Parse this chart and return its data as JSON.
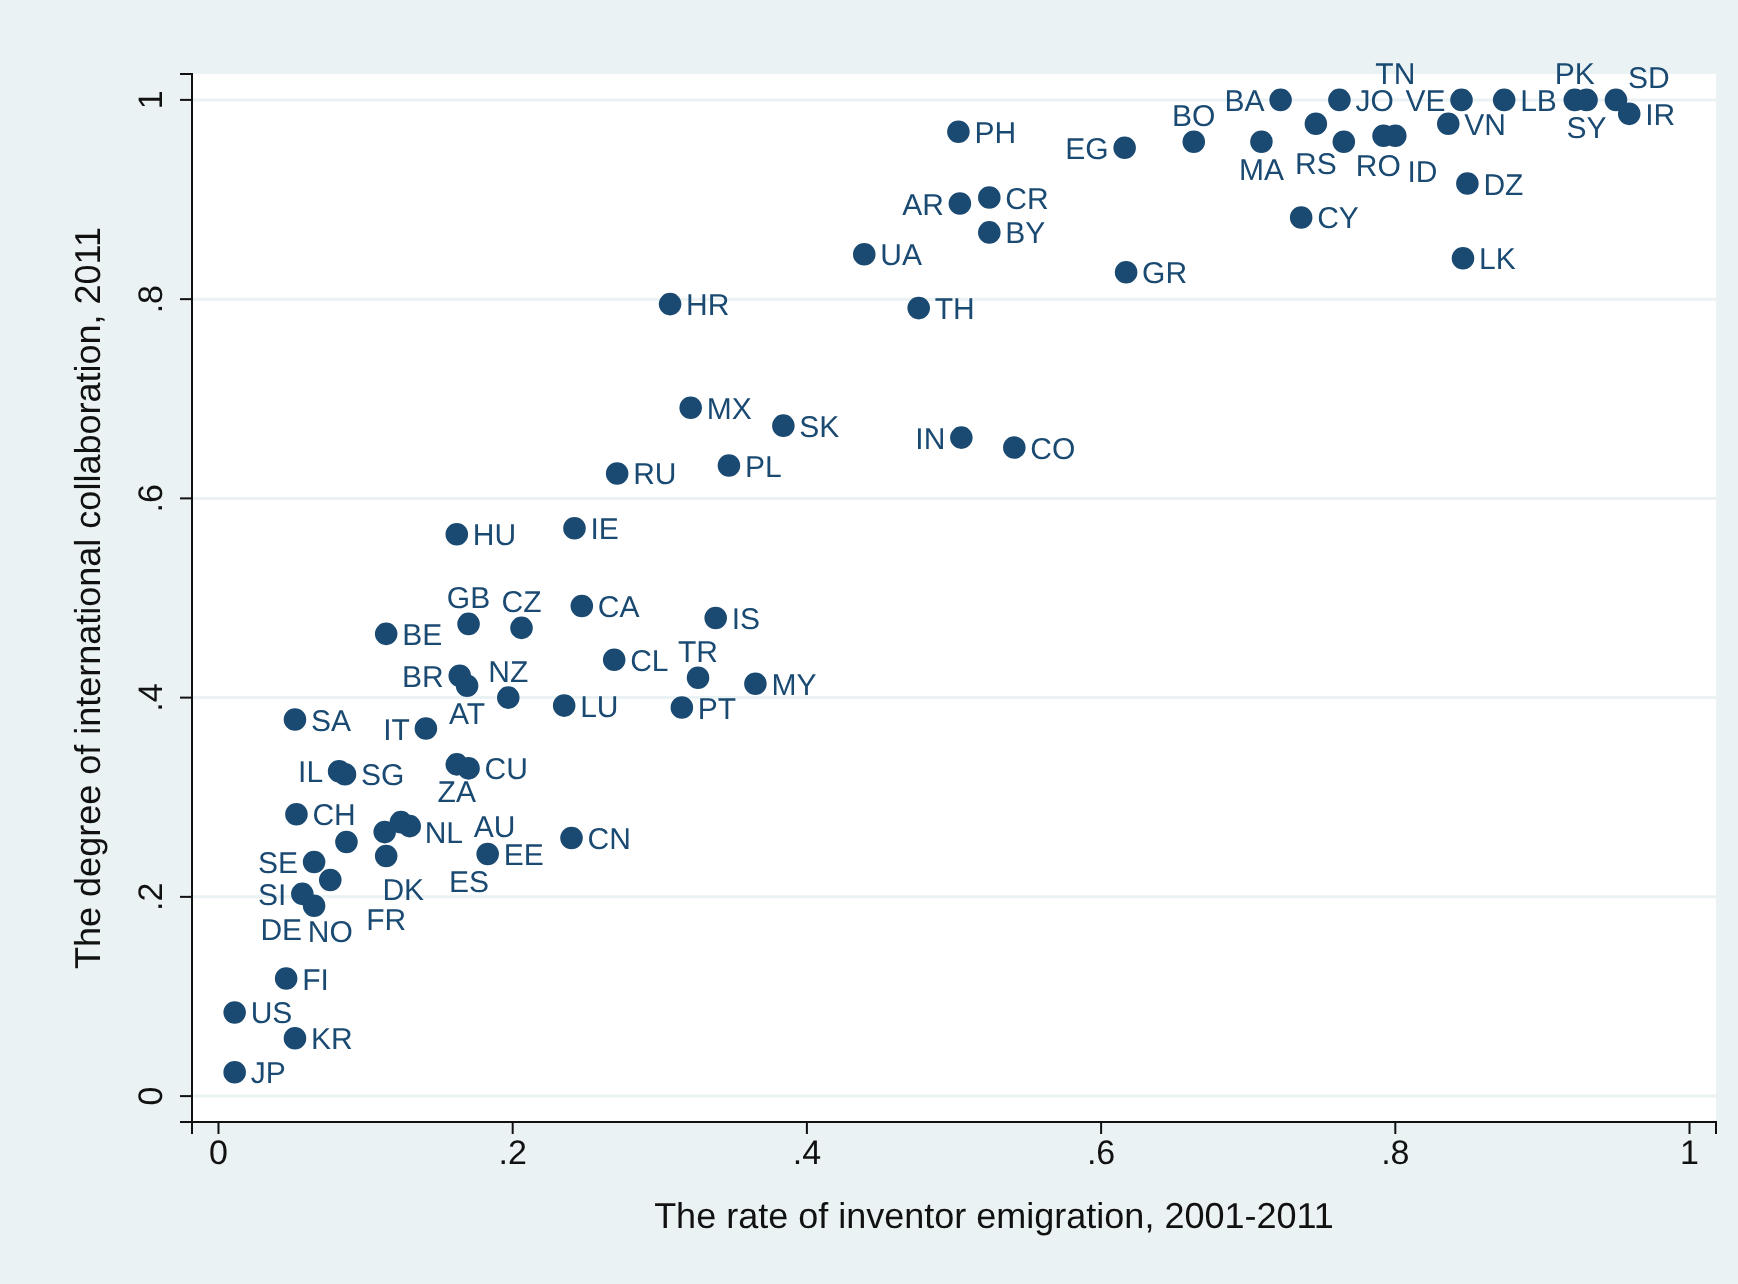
{
  "chart_data": {
    "type": "scatter",
    "xlabel": "The rate of inventor emigration, 2001-2011",
    "ylabel": "The degree of international collaboration, 2011",
    "xlim": [
      -0.018,
      1.018
    ],
    "ylim": [
      -0.026,
      1.026
    ],
    "xticks": [
      0,
      {
        "value": 0.2,
        "label": ".2"
      },
      {
        "value": 0.4,
        "label": ".4"
      },
      {
        "value": 0.6,
        "label": ".6"
      },
      {
        "value": 0.8,
        "label": ".8"
      },
      1
    ],
    "yticks": [
      0,
      {
        "value": 0.2,
        "label": ".2"
      },
      {
        "value": 0.4,
        "label": ".4"
      },
      {
        "value": 0.6,
        "label": ".6"
      },
      {
        "value": 0.8,
        "label": ".8"
      },
      1
    ],
    "grid": "y",
    "marker": "circle",
    "series": [
      {
        "color": "#1a4a72",
        "x": [
          0.722,
          0.762,
          0.746,
          0.845,
          0.874,
          0.922,
          0.93,
          0.95,
          0.959,
          0.836,
          0.765,
          0.792,
          0.8,
          0.709,
          0.663,
          0.616,
          0.849,
          0.736,
          0.846,
          0.617,
          0.503,
          0.504,
          0.524,
          0.524,
          0.439,
          0.307,
          0.476,
          0.321,
          0.384,
          0.505,
          0.541,
          0.271,
          0.347,
          0.162,
          0.242,
          0.247,
          0.338,
          0.114,
          0.17,
          0.206,
          0.269,
          0.326,
          0.365,
          0.164,
          0.169,
          0.197,
          0.235,
          0.315,
          0.052,
          0.141,
          0.082,
          0.086,
          0.162,
          0.17,
          0.053,
          0.087,
          0.113,
          0.124,
          0.13,
          0.114,
          0.183,
          0.24,
          0.065,
          0.076,
          0.057,
          0.065,
          0.046,
          0.011,
          0.052,
          0.011
        ],
        "values": [
          1.0,
          1.0,
          0.976,
          1.0,
          1.0,
          1.0,
          1.0,
          1.0,
          0.986,
          0.976,
          0.958,
          0.964,
          0.964,
          0.958,
          0.958,
          0.952,
          0.916,
          0.882,
          0.841,
          0.827,
          0.968,
          0.896,
          0.902,
          0.867,
          0.845,
          0.795,
          0.791,
          0.691,
          0.673,
          0.661,
          0.651,
          0.625,
          0.633,
          0.564,
          0.57,
          0.492,
          0.48,
          0.464,
          0.474,
          0.47,
          0.438,
          0.42,
          0.414,
          0.422,
          0.412,
          0.4,
          0.392,
          0.39,
          0.378,
          0.369,
          0.326,
          0.323,
          0.333,
          0.329,
          0.283,
          0.255,
          0.265,
          0.275,
          0.271,
          0.241,
          0.243,
          0.259,
          0.235,
          0.217,
          0.203,
          0.191,
          0.118,
          0.084,
          0.058,
          0.024
        ]
      }
    ],
    "annotations": [
      {
        "text": "BA",
        "x": 0.722,
        "y": 1.0
      },
      {
        "text": "JO",
        "x": 0.762,
        "y": 1.0
      },
      {
        "text": "RS",
        "x": 0.746,
        "y": 0.976
      },
      {
        "text": "VE",
        "x": 0.845,
        "y": 1.0
      },
      {
        "text": "LB",
        "x": 0.874,
        "y": 1.0
      },
      {
        "text": "PK",
        "x": 0.922,
        "y": 1.0
      },
      {
        "text": "SY",
        "x": 0.93,
        "y": 1.0
      },
      {
        "text": "SD",
        "x": 0.95,
        "y": 1.0
      },
      {
        "text": "IR",
        "x": 0.959,
        "y": 0.986
      },
      {
        "text": "VN",
        "x": 0.836,
        "y": 0.976
      },
      {
        "text": "RO",
        "x": 0.765,
        "y": 0.958
      },
      {
        "text": "ID",
        "x": 0.792,
        "y": 0.964
      },
      {
        "text": "TN",
        "x": 0.8,
        "y": 0.964
      },
      {
        "text": "MA",
        "x": 0.709,
        "y": 0.958
      },
      {
        "text": "BO",
        "x": 0.663,
        "y": 0.958
      },
      {
        "text": "EG",
        "x": 0.616,
        "y": 0.952
      },
      {
        "text": "DZ",
        "x": 0.849,
        "y": 0.916
      },
      {
        "text": "CY",
        "x": 0.736,
        "y": 0.882
      },
      {
        "text": "LK",
        "x": 0.846,
        "y": 0.841
      },
      {
        "text": "GR",
        "x": 0.617,
        "y": 0.827
      },
      {
        "text": "PH",
        "x": 0.503,
        "y": 0.968
      },
      {
        "text": "AR",
        "x": 0.504,
        "y": 0.896
      },
      {
        "text": "CR",
        "x": 0.524,
        "y": 0.902
      },
      {
        "text": "BY",
        "x": 0.524,
        "y": 0.867
      },
      {
        "text": "UA",
        "x": 0.439,
        "y": 0.845
      },
      {
        "text": "HR",
        "x": 0.307,
        "y": 0.795
      },
      {
        "text": "TH",
        "x": 0.476,
        "y": 0.791
      },
      {
        "text": "MX",
        "x": 0.321,
        "y": 0.691
      },
      {
        "text": "SK",
        "x": 0.384,
        "y": 0.673
      },
      {
        "text": "IN",
        "x": 0.505,
        "y": 0.661
      },
      {
        "text": "CO",
        "x": 0.541,
        "y": 0.651
      },
      {
        "text": "RU",
        "x": 0.271,
        "y": 0.625
      },
      {
        "text": "PL",
        "x": 0.347,
        "y": 0.633
      },
      {
        "text": "HU",
        "x": 0.162,
        "y": 0.564
      },
      {
        "text": "IE",
        "x": 0.242,
        "y": 0.57
      },
      {
        "text": "CA",
        "x": 0.247,
        "y": 0.492
      },
      {
        "text": "IS",
        "x": 0.338,
        "y": 0.48
      },
      {
        "text": "BE",
        "x": 0.114,
        "y": 0.464
      },
      {
        "text": "GB",
        "x": 0.17,
        "y": 0.474
      },
      {
        "text": "CZ",
        "x": 0.206,
        "y": 0.47
      },
      {
        "text": "CL",
        "x": 0.269,
        "y": 0.438
      },
      {
        "text": "TR",
        "x": 0.326,
        "y": 0.42
      },
      {
        "text": "MY",
        "x": 0.365,
        "y": 0.414
      },
      {
        "text": "BR",
        "x": 0.164,
        "y": 0.422
      },
      {
        "text": "AT",
        "x": 0.169,
        "y": 0.412
      },
      {
        "text": "NZ",
        "x": 0.197,
        "y": 0.4
      },
      {
        "text": "LU",
        "x": 0.235,
        "y": 0.392
      },
      {
        "text": "PT",
        "x": 0.315,
        "y": 0.39
      },
      {
        "text": "SA",
        "x": 0.052,
        "y": 0.378
      },
      {
        "text": "IT",
        "x": 0.141,
        "y": 0.369
      },
      {
        "text": "IL",
        "x": 0.082,
        "y": 0.326
      },
      {
        "text": "SG",
        "x": 0.086,
        "y": 0.323
      },
      {
        "text": "ZA",
        "x": 0.162,
        "y": 0.333
      },
      {
        "text": "CU",
        "x": 0.17,
        "y": 0.329
      },
      {
        "text": "CH",
        "x": 0.053,
        "y": 0.283
      },
      {
        "text": "DK",
        "x": 0.087,
        "y": 0.255
      },
      {
        "text": "NL",
        "x": 0.113,
        "y": 0.265
      },
      {
        "text": "ES",
        "x": 0.124,
        "y": 0.275
      },
      {
        "text": "AU",
        "x": 0.13,
        "y": 0.271
      },
      {
        "text": "FR",
        "x": 0.114,
        "y": 0.241
      },
      {
        "text": "EE",
        "x": 0.183,
        "y": 0.243
      },
      {
        "text": "CN",
        "x": 0.24,
        "y": 0.259
      },
      {
        "text": "SE",
        "x": 0.065,
        "y": 0.235
      },
      {
        "text": "NO",
        "x": 0.076,
        "y": 0.217
      },
      {
        "text": "SI",
        "x": 0.057,
        "y": 0.203
      },
      {
        "text": "DE",
        "x": 0.065,
        "y": 0.191
      },
      {
        "text": "FI",
        "x": 0.046,
        "y": 0.118
      },
      {
        "text": "US",
        "x": 0.011,
        "y": 0.084
      },
      {
        "text": "KR",
        "x": 0.052,
        "y": 0.058
      },
      {
        "text": "JP",
        "x": 0.011,
        "y": 0.024
      }
    ]
  }
}
